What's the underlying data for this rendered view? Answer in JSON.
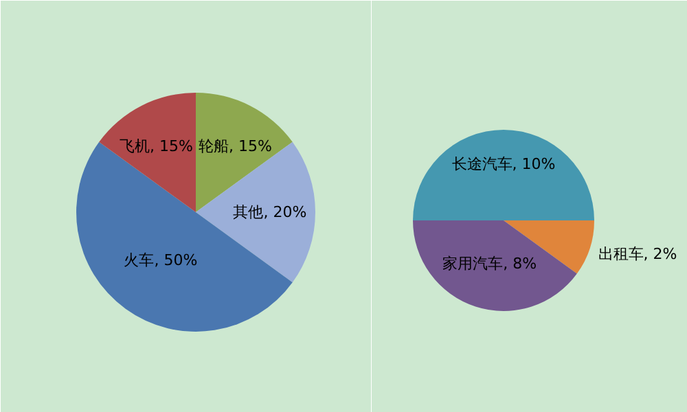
{
  "chart_data": [
    {
      "type": "pie",
      "categories": [
        "轮船",
        "其他",
        "火车",
        "飞机"
      ],
      "values": [
        15,
        20,
        50,
        15
      ],
      "value_labels": [
        "15%",
        "20%",
        "50%",
        "15%"
      ],
      "colors": [
        "#8ea84f",
        "#9bafd9",
        "#4a77b0",
        "#b0494a"
      ]
    },
    {
      "type": "pie",
      "categories": [
        "长途汽车",
        "出租车",
        "家用汽车"
      ],
      "values": [
        10,
        2,
        8
      ],
      "value_labels": [
        "10%",
        "2%",
        "8%"
      ],
      "colors": [
        "#4598b0",
        "#e0853b",
        "#72578f"
      ]
    }
  ]
}
